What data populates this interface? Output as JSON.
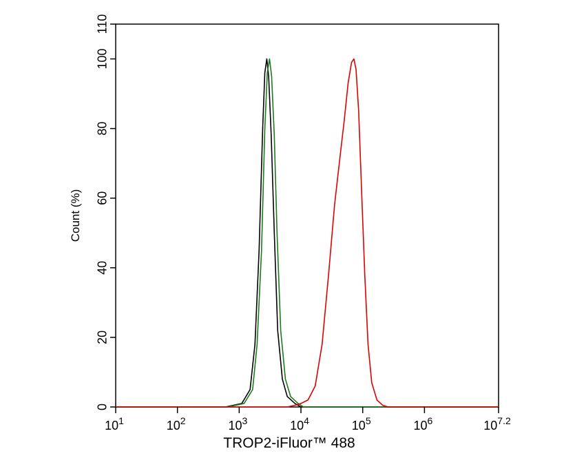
{
  "chart_data": {
    "type": "line",
    "title": "",
    "xlabel": "TROP2-iFluor™ 488",
    "ylabel": "Count (%)",
    "xscale": "log",
    "xlim": [
      10,
      15848932
    ],
    "ylim": [
      0,
      110
    ],
    "grid": false,
    "x_tick_labels": [
      {
        "base": "10",
        "exp": "1"
      },
      {
        "base": "10",
        "exp": "2"
      },
      {
        "base": "10",
        "exp": "3"
      },
      {
        "base": "10",
        "exp": "4"
      },
      {
        "base": "10",
        "exp": "5"
      },
      {
        "base": "10",
        "exp": "6"
      },
      {
        "base": "10",
        "exp": "7.2"
      }
    ],
    "x_ticks": [
      10,
      100,
      1000,
      10000,
      100000,
      1000000,
      15848932
    ],
    "y_tick_labels": [
      "0",
      "20",
      "40",
      "60",
      "80",
      "100",
      "110"
    ],
    "y_ticks": [
      0,
      20,
      40,
      60,
      80,
      100,
      110
    ],
    "series": [
      {
        "color": "#000000",
        "points": [
          [
            10,
            0
          ],
          [
            600,
            0
          ],
          [
            1100,
            1
          ],
          [
            1500,
            5
          ],
          [
            1800,
            18
          ],
          [
            2100,
            45
          ],
          [
            2400,
            80
          ],
          [
            2600,
            96
          ],
          [
            2800,
            100
          ],
          [
            3000,
            95
          ],
          [
            3300,
            78
          ],
          [
            3700,
            50
          ],
          [
            4200,
            22
          ],
          [
            5000,
            8
          ],
          [
            6000,
            3
          ],
          [
            8000,
            1
          ],
          [
            10000,
            0
          ],
          [
            15848932,
            0
          ]
        ]
      },
      {
        "color": "#1a7a1a",
        "points": [
          [
            10,
            0
          ],
          [
            650,
            0
          ],
          [
            1200,
            1
          ],
          [
            1650,
            5
          ],
          [
            1950,
            18
          ],
          [
            2300,
            45
          ],
          [
            2600,
            80
          ],
          [
            2850,
            96
          ],
          [
            3100,
            100
          ],
          [
            3350,
            95
          ],
          [
            3700,
            78
          ],
          [
            4100,
            50
          ],
          [
            4700,
            22
          ],
          [
            5600,
            8
          ],
          [
            6800,
            3
          ],
          [
            9000,
            1
          ],
          [
            11000,
            0
          ],
          [
            15848932,
            0
          ]
        ]
      },
      {
        "color": "#dd0000",
        "points": [
          [
            10,
            0
          ],
          [
            6000,
            0
          ],
          [
            8000,
            0.5
          ],
          [
            10000,
            1
          ],
          [
            13000,
            2
          ],
          [
            17000,
            6
          ],
          [
            22000,
            18
          ],
          [
            28000,
            38
          ],
          [
            35000,
            58
          ],
          [
            43000,
            72
          ],
          [
            50000,
            82
          ],
          [
            58000,
            93
          ],
          [
            66000,
            99
          ],
          [
            72000,
            100
          ],
          [
            78000,
            97
          ],
          [
            86000,
            85
          ],
          [
            96000,
            62
          ],
          [
            108000,
            38
          ],
          [
            122000,
            18
          ],
          [
            140000,
            7
          ],
          [
            170000,
            2
          ],
          [
            210000,
            0.5
          ],
          [
            260000,
            0
          ],
          [
            15848932,
            0
          ]
        ]
      }
    ]
  }
}
